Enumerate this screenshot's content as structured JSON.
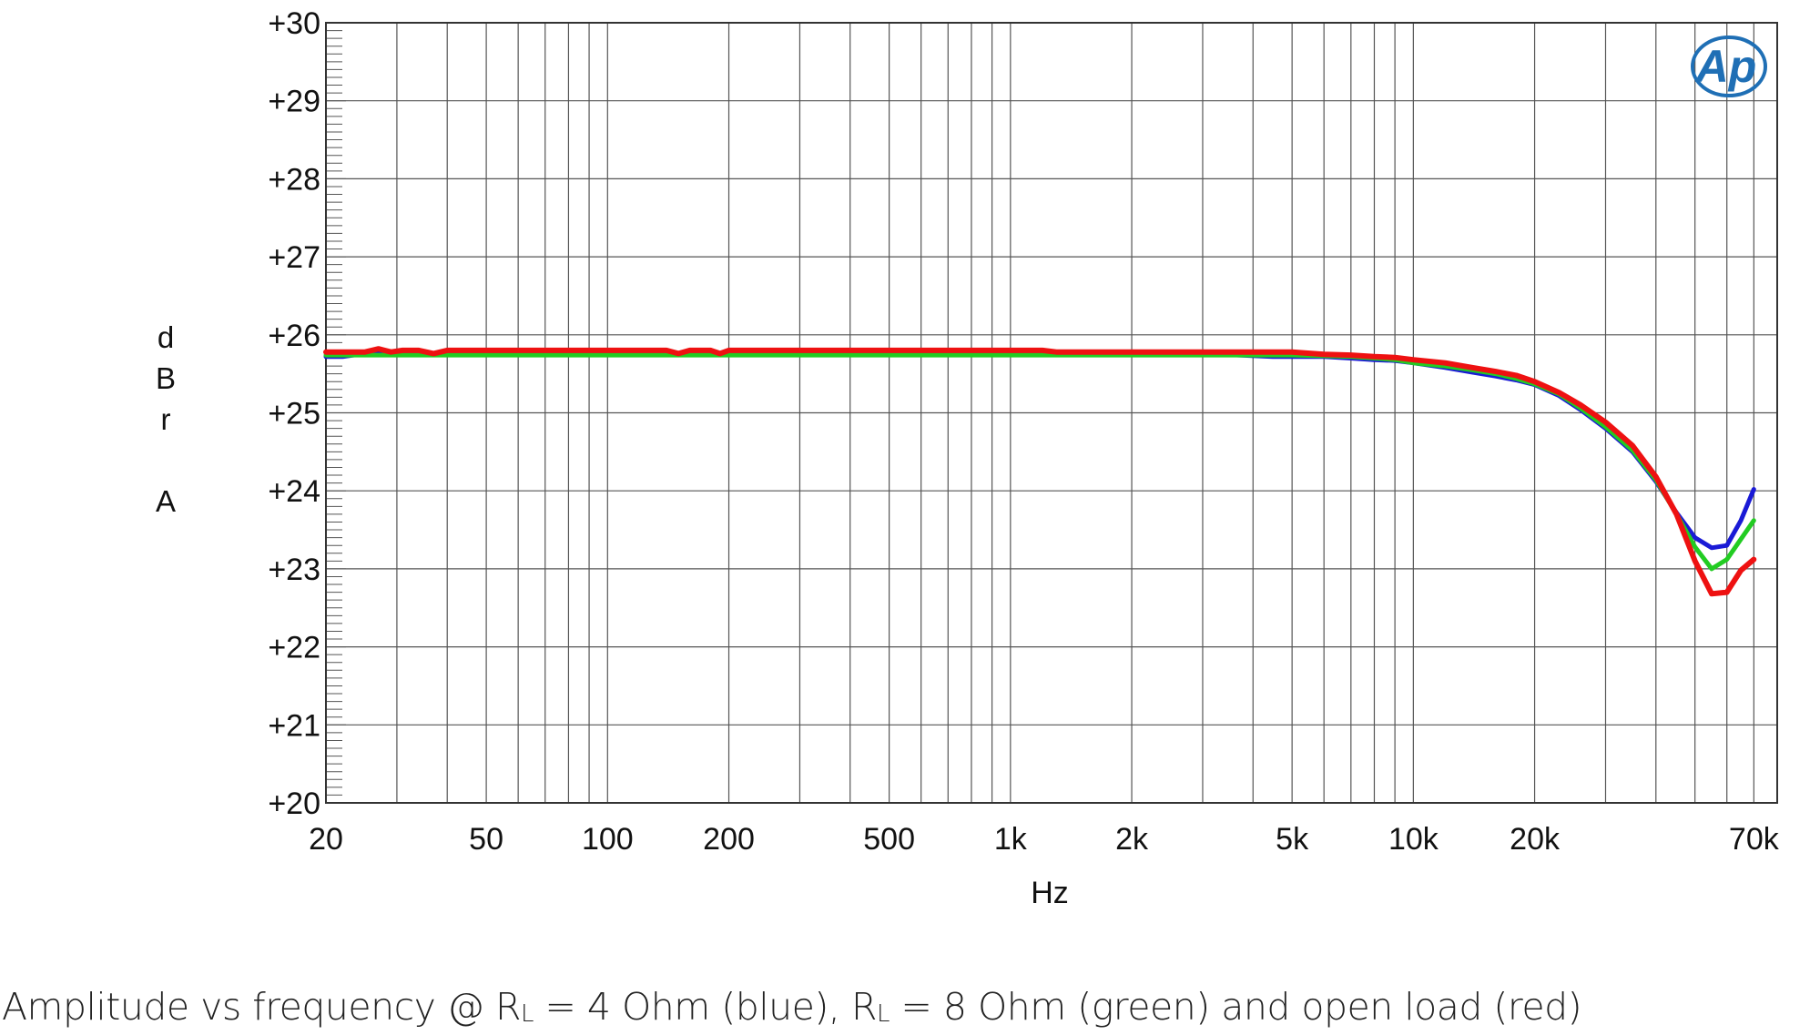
{
  "chart_data": {
    "type": "line",
    "xscale": "log",
    "xlim": [
      20,
      80000
    ],
    "ylim": [
      20,
      30
    ],
    "grid": true,
    "xlabel": "Hz",
    "ylabel": [
      "d",
      "B",
      "r",
      "",
      "A"
    ],
    "x_ticks": [
      20,
      50,
      100,
      200,
      500,
      1000,
      2000,
      5000,
      10000,
      20000,
      70000
    ],
    "x_tick_labels": [
      "20",
      "50",
      "100",
      "200",
      "500",
      "1k",
      "2k",
      "5k",
      "10k",
      "20k",
      "70k"
    ],
    "y_ticks": [
      20,
      21,
      22,
      23,
      24,
      25,
      26,
      27,
      28,
      29,
      30
    ],
    "y_tick_labels": [
      "+20",
      "+21",
      "+22",
      "+23",
      "+24",
      "+25",
      "+26",
      "+27",
      "+28",
      "+29",
      "+30"
    ],
    "logo": "Ap",
    "series": [
      {
        "color": "#1a1ad6",
        "values": [
          [
            20,
            25.72
          ],
          [
            22,
            25.72
          ],
          [
            25,
            25.76
          ],
          [
            30,
            25.76
          ],
          [
            40,
            25.76
          ],
          [
            100,
            25.76
          ],
          [
            200,
            25.76
          ],
          [
            500,
            25.76
          ],
          [
            1000,
            25.76
          ],
          [
            2000,
            25.76
          ],
          [
            3000,
            25.76
          ],
          [
            4500,
            25.72
          ],
          [
            5000,
            25.72
          ],
          [
            6000,
            25.72
          ],
          [
            7000,
            25.7
          ],
          [
            8000,
            25.68
          ],
          [
            9000,
            25.67
          ],
          [
            10000,
            25.64
          ],
          [
            12000,
            25.58
          ],
          [
            14000,
            25.52
          ],
          [
            16000,
            25.47
          ],
          [
            18000,
            25.42
          ],
          [
            20000,
            25.36
          ],
          [
            23000,
            25.22
          ],
          [
            26000,
            25.04
          ],
          [
            30000,
            24.8
          ],
          [
            35000,
            24.5
          ],
          [
            40000,
            24.12
          ],
          [
            45000,
            23.72
          ],
          [
            50000,
            23.4
          ],
          [
            55000,
            23.27
          ],
          [
            60000,
            23.3
          ],
          [
            65000,
            23.62
          ],
          [
            70000,
            24.02
          ]
        ]
      },
      {
        "color": "#22cc22",
        "values": [
          [
            20,
            25.74
          ],
          [
            30,
            25.74
          ],
          [
            40,
            25.74
          ],
          [
            100,
            25.74
          ],
          [
            200,
            25.74
          ],
          [
            500,
            25.74
          ],
          [
            1000,
            25.74
          ],
          [
            2000,
            25.74
          ],
          [
            3000,
            25.74
          ],
          [
            4500,
            25.74
          ],
          [
            5000,
            25.74
          ],
          [
            6000,
            25.73
          ],
          [
            7000,
            25.72
          ],
          [
            8000,
            25.7
          ],
          [
            9000,
            25.68
          ],
          [
            10000,
            25.64
          ],
          [
            12000,
            25.6
          ],
          [
            14000,
            25.55
          ],
          [
            16000,
            25.5
          ],
          [
            18000,
            25.44
          ],
          [
            20000,
            25.37
          ],
          [
            23000,
            25.24
          ],
          [
            26000,
            25.06
          ],
          [
            30000,
            24.82
          ],
          [
            35000,
            24.52
          ],
          [
            40000,
            24.14
          ],
          [
            45000,
            23.7
          ],
          [
            50000,
            23.28
          ],
          [
            55000,
            23.0
          ],
          [
            60000,
            23.12
          ],
          [
            65000,
            23.38
          ],
          [
            70000,
            23.62
          ]
        ]
      },
      {
        "color": "#ee1111",
        "values": [
          [
            20,
            25.78
          ],
          [
            22,
            25.78
          ],
          [
            25,
            25.78
          ],
          [
            27,
            25.82
          ],
          [
            29,
            25.78
          ],
          [
            31,
            25.8
          ],
          [
            34,
            25.8
          ],
          [
            37,
            25.76
          ],
          [
            40,
            25.8
          ],
          [
            60,
            25.8
          ],
          [
            100,
            25.8
          ],
          [
            140,
            25.8
          ],
          [
            150,
            25.76
          ],
          [
            160,
            25.8
          ],
          [
            180,
            25.8
          ],
          [
            190,
            25.76
          ],
          [
            200,
            25.8
          ],
          [
            500,
            25.8
          ],
          [
            1000,
            25.8
          ],
          [
            1200,
            25.8
          ],
          [
            1300,
            25.78
          ],
          [
            2000,
            25.78
          ],
          [
            3000,
            25.78
          ],
          [
            4000,
            25.78
          ],
          [
            5000,
            25.78
          ],
          [
            6000,
            25.75
          ],
          [
            7000,
            25.74
          ],
          [
            8000,
            25.72
          ],
          [
            9000,
            25.71
          ],
          [
            10000,
            25.68
          ],
          [
            12000,
            25.64
          ],
          [
            14000,
            25.58
          ],
          [
            16000,
            25.53
          ],
          [
            18000,
            25.48
          ],
          [
            20000,
            25.4
          ],
          [
            23000,
            25.26
          ],
          [
            26000,
            25.1
          ],
          [
            30000,
            24.88
          ],
          [
            35000,
            24.58
          ],
          [
            40000,
            24.18
          ],
          [
            45000,
            23.7
          ],
          [
            50000,
            23.1
          ],
          [
            55000,
            22.68
          ],
          [
            60000,
            22.7
          ],
          [
            65000,
            22.98
          ],
          [
            70000,
            23.12
          ]
        ]
      }
    ]
  },
  "caption": {
    "prefix": "Amplitude vs frequency @ R",
    "sub1": "L",
    "mid1": " = 4 Ohm (blue), R",
    "sub2": "L",
    "suffix": " = 8 Ohm (green) and open load (red)"
  }
}
